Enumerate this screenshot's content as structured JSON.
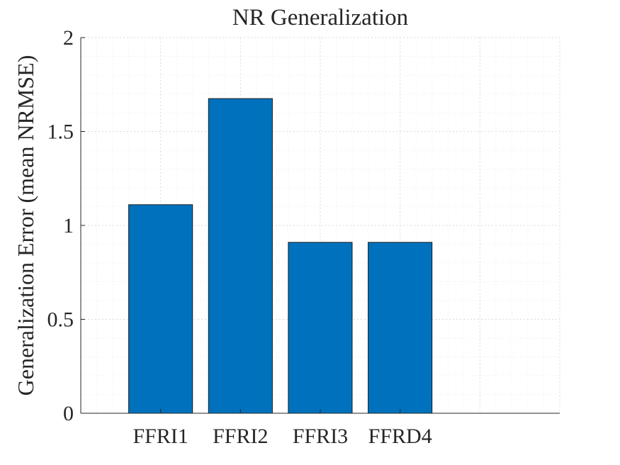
{
  "chart_data": {
    "type": "bar",
    "title": "NR Generalization",
    "xlabel": "",
    "ylabel": "Generalization Error (mean NRMSE)",
    "categories": [
      "FFRI1",
      "FFRI2",
      "FFRI3",
      "FFRD4"
    ],
    "values": [
      1.11,
      1.675,
      0.91,
      0.91
    ],
    "ylim": [
      0,
      2
    ],
    "yticks": [
      0,
      0.5,
      1,
      1.5,
      2
    ],
    "ytick_labels": [
      "0",
      "0.5",
      "1",
      "1.5",
      "2"
    ],
    "xlim": [
      0,
      6
    ],
    "grid": "on (major and minor, dotted)",
    "bar_color": "#0072BD",
    "legend": "none"
  }
}
